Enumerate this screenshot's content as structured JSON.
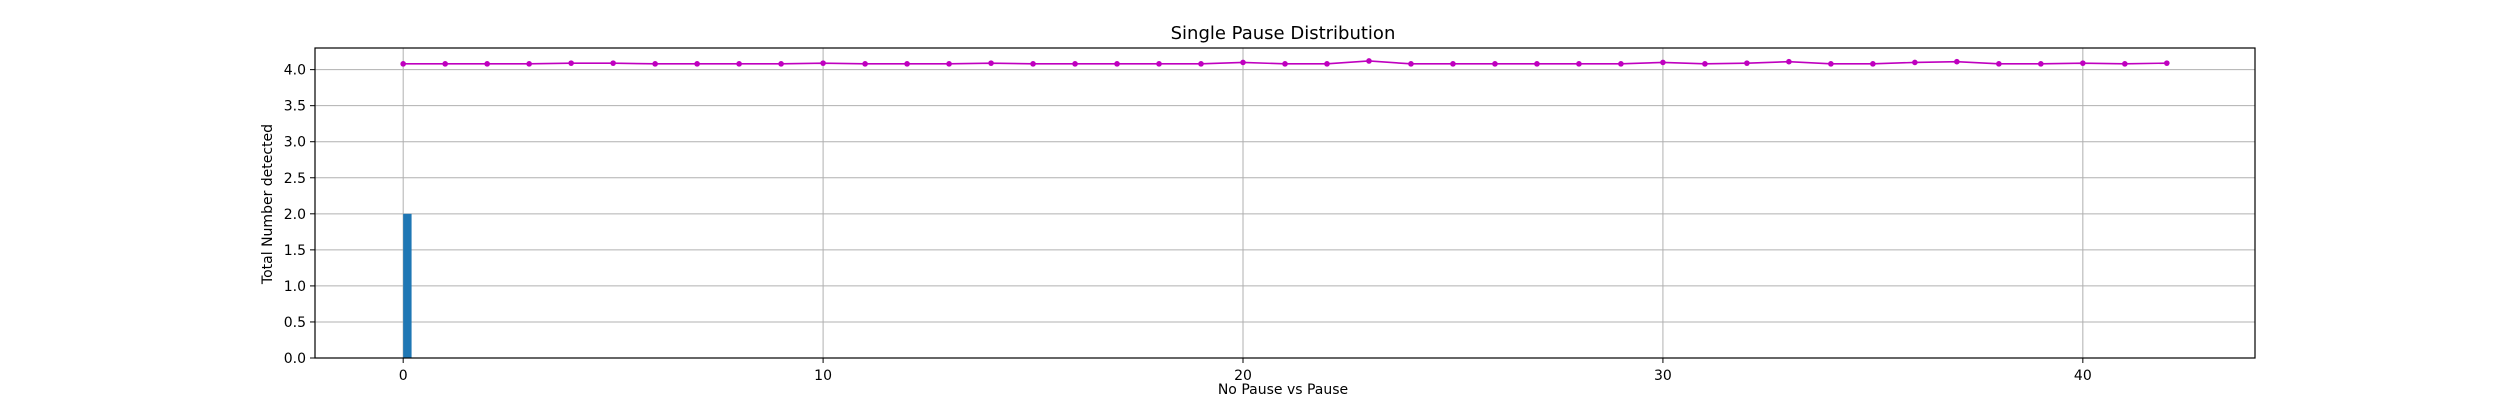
{
  "chart_data": {
    "type": "bar+line",
    "title": "Single Pause Distribution",
    "xlabel": "No Pause vs Pause",
    "ylabel": "Total Number detected",
    "xlim": [
      -2.1,
      44.1
    ],
    "ylim": [
      0,
      4.3
    ],
    "xticks": [
      0,
      10,
      20,
      30,
      40
    ],
    "yticks": [
      0.0,
      0.5,
      1.0,
      1.5,
      2.0,
      2.5,
      3.0,
      3.5,
      4.0
    ],
    "ytick_labels": [
      "0.0",
      "0.5",
      "1.0",
      "1.5",
      "2.0",
      "2.5",
      "3.0",
      "3.5",
      "4.0"
    ],
    "grid": true,
    "bars": {
      "color": "#1f77b4",
      "x": [
        0.1
      ],
      "width": 0.2,
      "values": [
        2.0
      ]
    },
    "line_series": {
      "color": "#bf00bf",
      "marker": "dot",
      "x": [
        0,
        1,
        2,
        3,
        4,
        5,
        6,
        7,
        8,
        9,
        10,
        11,
        12,
        13,
        14,
        15,
        16,
        17,
        18,
        19,
        20,
        21,
        22,
        23,
        24,
        25,
        26,
        27,
        28,
        29,
        30,
        31,
        32,
        33,
        34,
        35,
        36,
        37,
        38,
        39,
        40,
        41,
        42
      ],
      "values": [
        4.08,
        4.08,
        4.08,
        4.08,
        4.09,
        4.09,
        4.08,
        4.08,
        4.08,
        4.08,
        4.09,
        4.08,
        4.08,
        4.08,
        4.09,
        4.08,
        4.08,
        4.08,
        4.08,
        4.08,
        4.1,
        4.08,
        4.08,
        4.12,
        4.08,
        4.08,
        4.08,
        4.08,
        4.08,
        4.08,
        4.1,
        4.08,
        4.09,
        4.11,
        4.08,
        4.08,
        4.1,
        4.11,
        4.08,
        4.08,
        4.09,
        4.08,
        4.09
      ]
    }
  }
}
